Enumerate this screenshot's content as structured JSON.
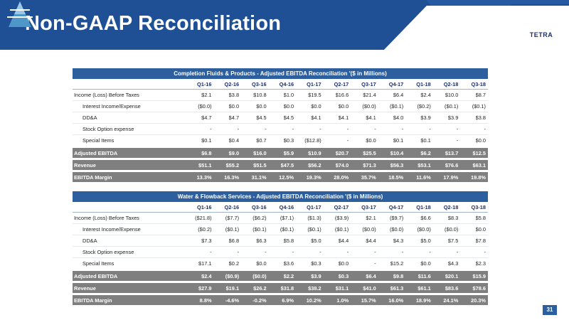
{
  "slide": {
    "title": "Non-GAAP Reconciliation",
    "logo_text": "TETRA",
    "page_number": "31",
    "colors": {
      "header_blue": "#1f4f95",
      "table_blue": "#2d5f9e",
      "summary_gray": "#7f7f7f"
    }
  },
  "table1": {
    "caption": "Completion Fluids & Products - Adjusted EBITDA Reconciliation '($ in Millions)",
    "columns": [
      "Q1-16",
      "Q2-16",
      "Q3-16",
      "Q4-16",
      "Q1-17",
      "Q2-17",
      "Q3-17",
      "Q4-17",
      "Q1-18",
      "Q2-18",
      "Q3-18"
    ],
    "rows": [
      {
        "label": "Income (Loss) Before Taxes",
        "indent": false,
        "values": [
          "$2.1",
          "$3.8",
          "$10.8",
          "$1.0",
          "$19.5",
          "$16.6",
          "$21.4",
          "$6.4",
          "$2.4",
          "$10.0",
          "$8.7"
        ]
      },
      {
        "label": "Interest Income/Expense",
        "indent": true,
        "values": [
          "($0.0)",
          "$0.0",
          "$0.0",
          "$0.0",
          "$0.0",
          "$0.0",
          "($0.0)",
          "($0.1)",
          "($0.2)",
          "($0.1)",
          "($0.1)"
        ]
      },
      {
        "label": "DD&A",
        "indent": true,
        "values": [
          "$4.7",
          "$4.7",
          "$4.5",
          "$4.5",
          "$4.1",
          "$4.1",
          "$4.1",
          "$4.0",
          "$3.9",
          "$3.9",
          "$3.8"
        ]
      },
      {
        "label": "Stock Option expense",
        "indent": true,
        "values": [
          "-",
          "-",
          "-",
          "-",
          "-",
          "-",
          "-",
          "-",
          "-",
          "-",
          "-"
        ]
      },
      {
        "label": "Special Items",
        "indent": true,
        "values": [
          "$0.1",
          "$0.4",
          "$0.7",
          "$0.3",
          "($12.8)",
          "-",
          "$0.0",
          "$0.1",
          "$0.1",
          "-",
          "$0.0"
        ]
      }
    ],
    "summary": [
      {
        "label": "Adjusted EBITDA",
        "values": [
          "$6.8",
          "$9.0",
          "$16.0",
          "$5.9",
          "$10.9",
          "$20.7",
          "$25.5",
          "$10.4",
          "$6.2",
          "$13.7",
          "$12.5"
        ]
      },
      {
        "label": "Revenue",
        "values": [
          "$51.1",
          "$55.2",
          "$51.5",
          "$47.5",
          "$56.2",
          "$74.0",
          "$71.3",
          "$56.3",
          "$53.1",
          "$76.6",
          "$63.1"
        ]
      },
      {
        "label": "EBITDA Margin",
        "values": [
          "13.3%",
          "16.3%",
          "31.1%",
          "12.5%",
          "19.3%",
          "28.0%",
          "35.7%",
          "18.5%",
          "11.6%",
          "17.9%",
          "19.8%"
        ]
      }
    ]
  },
  "table2": {
    "caption": "Water & Flowback Services - Adjusted EBITDA Reconciliation '($ in Millions)",
    "columns": [
      "Q1-16",
      "Q2-16",
      "Q3-16",
      "Q4-16",
      "Q1-17",
      "Q2-17",
      "Q3-17",
      "Q4-17",
      "Q1-18",
      "Q2-18",
      "Q3-18"
    ],
    "rows": [
      {
        "label": "Income (Loss) Before Taxes",
        "indent": false,
        "values": [
          "($21.8)",
          "($7.7)",
          "($6.2)",
          "($7.1)",
          "($1.3)",
          "($3.9)",
          "$2.1",
          "($9.7)",
          "$6.6",
          "$8.3",
          "$5.8"
        ]
      },
      {
        "label": "Interest Income/Expense",
        "indent": true,
        "values": [
          "($0.2)",
          "($0.1)",
          "($0.1)",
          "($0.1)",
          "($0.1)",
          "($0.1)",
          "($0.0)",
          "($0.0)",
          "($0.0)",
          "($0.0)",
          "$0.0"
        ]
      },
      {
        "label": "DD&A",
        "indent": true,
        "values": [
          "$7.3",
          "$6.8",
          "$6.3",
          "$5.8",
          "$5.0",
          "$4.4",
          "$4.4",
          "$4.3",
          "$5.0",
          "$7.5",
          "$7.8"
        ]
      },
      {
        "label": "Stock Option expense",
        "indent": true,
        "values": [
          "-",
          "-",
          "-",
          "-",
          "-",
          "-",
          "-",
          "-",
          "-",
          "-",
          "-"
        ]
      },
      {
        "label": "Special Items",
        "indent": true,
        "values": [
          "$17.1",
          "$0.2",
          "$0.0",
          "$3.6",
          "$0.3",
          "$0.0",
          "-",
          "$15.2",
          "$0.0",
          "$4.3",
          "$2.3"
        ]
      }
    ],
    "summary": [
      {
        "label": "Adjusted EBITDA",
        "values": [
          "$2.4",
          "($0.9)",
          "($0.0)",
          "$2.2",
          "$3.9",
          "$0.3",
          "$6.4",
          "$9.8",
          "$11.6",
          "$20.1",
          "$15.9"
        ]
      },
      {
        "label": "Revenue",
        "values": [
          "$27.9",
          "$19.1",
          "$26.2",
          "$31.8",
          "$38.2",
          "$31.1",
          "$41.0",
          "$61.3",
          "$61.1",
          "$83.6",
          "$78.6"
        ]
      },
      {
        "label": "EBITDA Margin",
        "values": [
          "8.8%",
          "-4.6%",
          "-0.2%",
          "6.9%",
          "10.2%",
          "1.0%",
          "15.7%",
          "16.0%",
          "18.9%",
          "24.1%",
          "20.3%"
        ]
      }
    ]
  }
}
